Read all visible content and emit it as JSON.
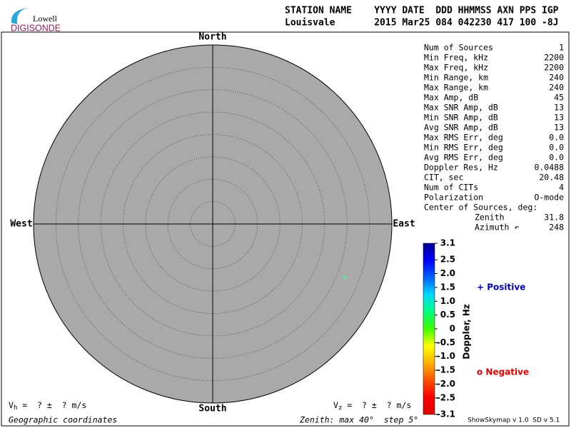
{
  "logo": {
    "top": "Lowell",
    "bottom": "DIGISONDE"
  },
  "header": {
    "labels": "STATION NAME    YYYY DATE  DDD HHMMSS AXN PPS IGP",
    "values": "Louisvale       2015 Mar25 084 042230 417 100 -8J"
  },
  "stats": [
    {
      "label": "Num of Sources",
      "value": 1
    },
    {
      "label": "Min Freq, kHz",
      "value": 2200
    },
    {
      "label": "Max Freq, kHz",
      "value": 2200
    },
    {
      "label": "Min Range, km",
      "value": 240
    },
    {
      "label": "Max Range, km",
      "value": 240
    },
    {
      "label": "Max Amp, dB",
      "value": 45
    },
    {
      "label": "Max SNR Amp, dB",
      "value": 13
    },
    {
      "label": "Min SNR Amp, dB",
      "value": 13
    },
    {
      "label": "Avg SNR Amp, dB",
      "value": 13
    },
    {
      "label": "Max RMS Err, deg",
      "value": "0.0"
    },
    {
      "label": "Min RMS Err, deg",
      "value": "0.0"
    },
    {
      "label": "Avg RMS Err, deg",
      "value": "0.0"
    },
    {
      "label": "Doppler Res, Hz",
      "value": 0.0488
    },
    {
      "label": "CIT, sec",
      "value": 20.48
    },
    {
      "label": "Num of CITs",
      "value": 4
    },
    {
      "label": "Polarization",
      "value": "O-mode"
    },
    {
      "label": "Center of Sources, deg:",
      "value": null
    },
    {
      "label": "Zenith",
      "value": 31.8
    },
    {
      "label": "Azimuth ↶",
      "value": 248
    }
  ],
  "chart_data": {
    "type": "skymap",
    "directions": {
      "north": "North",
      "south": "South",
      "west": "West",
      "east": "East"
    },
    "rlim": [
      0,
      40
    ],
    "rticks": [
      5,
      10,
      15,
      20,
      25,
      30,
      35,
      40
    ],
    "grid": true,
    "fill": "#a9a9a9",
    "source_color": "#3dff9c",
    "colorbar": {
      "title": "Doppler, Hz",
      "clim": [
        -3.1,
        3.1
      ],
      "colors": [
        "#00008c",
        "#0000ff",
        "#0060ff",
        "#00d8ff",
        "#00ff80",
        "#40ff00",
        "#ffff00",
        "#ffb000",
        "#ff5000",
        "#ff0000",
        "#e00000"
      ],
      "ticks": [
        3.1,
        2.5,
        {
          "value": 2,
          "label": "2.0"
        },
        1.5,
        {
          "value": 1,
          "label": "1.0"
        },
        0.5,
        0,
        -0.5,
        {
          "value": -1,
          "label": "-1.0"
        },
        -1.5,
        {
          "value": -2,
          "label": "-2.0"
        },
        -2.5,
        -3.1
      ]
    },
    "legend": {
      "positive": "+ Positive",
      "negative": "o Negative",
      "positive_color": "#0000c0",
      "negative_color": "#e00000"
    }
  },
  "footer": {
    "vh": {
      "v": "V",
      "sub": "h",
      "rest": " =  ? ±  ? m/s"
    },
    "vz": {
      "v": "V",
      "sub": "z",
      "rest": " =  ? ±  ? m/s"
    },
    "coords": "Geographic coordinates",
    "zenith": "Zenith: max 40°  step 5°",
    "version": "ShowSkymap v 1.0  SD v 5.1"
  }
}
